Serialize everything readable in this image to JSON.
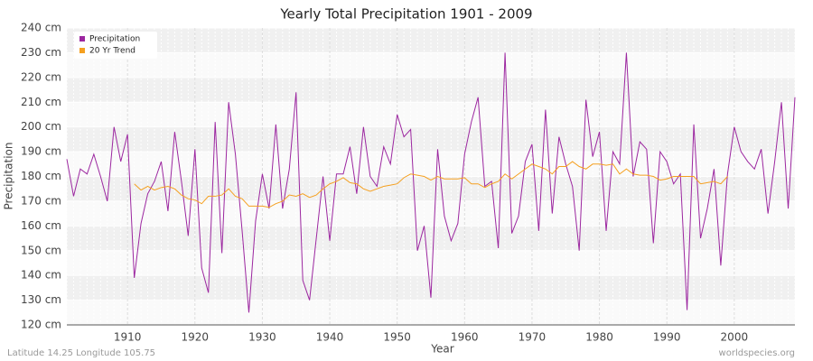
{
  "chart_data": {
    "type": "line",
    "title": "Yearly Total Precipitation 1901 - 2009",
    "x_label": "Year",
    "y_label": "Precipitation",
    "footer_left": "Latitude 14.25 Longitude 105.75",
    "footer_right": "worldspecies.org",
    "legend": "top-left",
    "grid": true,
    "x": [
      1901,
      1902,
      1903,
      1904,
      1905,
      1906,
      1907,
      1908,
      1909,
      1910,
      1911,
      1912,
      1913,
      1914,
      1915,
      1916,
      1917,
      1918,
      1919,
      1920,
      1921,
      1922,
      1923,
      1924,
      1925,
      1926,
      1927,
      1928,
      1929,
      1930,
      1931,
      1932,
      1933,
      1934,
      1935,
      1936,
      1937,
      1938,
      1939,
      1940,
      1941,
      1942,
      1943,
      1944,
      1945,
      1946,
      1947,
      1948,
      1949,
      1950,
      1951,
      1952,
      1953,
      1954,
      1955,
      1956,
      1957,
      1958,
      1959,
      1960,
      1961,
      1962,
      1963,
      1964,
      1965,
      1966,
      1967,
      1968,
      1969,
      1970,
      1971,
      1972,
      1973,
      1974,
      1975,
      1976,
      1977,
      1978,
      1979,
      1980,
      1981,
      1982,
      1983,
      1984,
      1985,
      1986,
      1987,
      1988,
      1989,
      1990,
      1991,
      1992,
      1993,
      1994,
      1995,
      1996,
      1997,
      1998,
      1999,
      2000,
      2001,
      2002,
      2003,
      2004,
      2005,
      2006,
      2007,
      2008,
      2009
    ],
    "xlim": [
      1901,
      2009
    ],
    "xticks": [
      1910,
      1920,
      1930,
      1940,
      1950,
      1960,
      1970,
      1980,
      1990,
      2000
    ],
    "ylim": [
      120,
      240
    ],
    "yticks": [
      {
        "value": 120,
        "label": "120 cm"
      },
      {
        "value": 130,
        "label": "130 cm"
      },
      {
        "value": 140,
        "label": "140 cm"
      },
      {
        "value": 150,
        "label": "150 cm"
      },
      {
        "value": 160,
        "label": "160 cm"
      },
      {
        "value": 170,
        "label": "170 cm"
      },
      {
        "value": 180,
        "label": "180 cm"
      },
      {
        "value": 190,
        "label": "190 cm"
      },
      {
        "value": 200,
        "label": "200 cm"
      },
      {
        "value": 210,
        "label": "210 cm"
      },
      {
        "value": 220,
        "label": "220 cm"
      },
      {
        "value": 230,
        "label": "230 cm"
      },
      {
        "value": 240,
        "label": "240 cm"
      }
    ],
    "series": [
      {
        "name": "Precipitation",
        "color": "#9c27a0",
        "values": [
          187,
          172,
          183,
          181,
          189,
          180,
          170,
          200,
          186,
          197,
          139,
          161,
          173,
          178,
          186,
          166,
          198,
          178,
          156,
          191,
          143,
          133,
          202,
          149,
          210,
          189,
          158,
          125,
          162,
          181,
          167,
          201,
          167,
          183,
          214,
          138,
          130,
          155,
          180,
          154,
          181,
          181,
          192,
          173,
          200,
          180,
          176,
          192,
          185,
          205,
          196,
          199,
          150,
          160,
          131,
          191,
          164,
          154,
          161,
          189,
          202,
          212,
          176,
          178,
          151,
          230,
          157,
          164,
          186,
          193,
          158,
          207,
          165,
          196,
          185,
          176,
          150,
          211,
          188,
          198,
          158,
          190,
          185,
          230,
          180,
          194,
          191,
          153,
          190,
          186,
          177,
          181,
          126,
          201,
          155,
          167,
          183,
          144,
          181,
          200,
          190,
          186,
          183,
          191,
          165,
          186,
          210,
          167,
          212
        ]
      },
      {
        "name": "20 Yr Trend",
        "color": "#f5a020",
        "values": [
          null,
          null,
          null,
          null,
          null,
          null,
          null,
          null,
          null,
          null,
          177,
          174.5,
          176,
          174.5,
          175.5,
          176,
          175,
          172.5,
          171,
          170.5,
          169,
          172,
          172,
          172.5,
          175,
          172,
          171,
          168,
          168,
          168,
          167.5,
          169,
          170,
          172.5,
          172,
          173,
          171.5,
          172.5,
          175,
          177,
          178,
          179.5,
          177.5,
          177,
          175,
          174,
          175,
          176,
          176.5,
          177,
          179.5,
          181,
          180.5,
          180,
          178.5,
          180,
          179,
          179,
          179,
          179.5,
          177,
          177,
          175.5,
          177,
          178,
          181,
          179,
          181,
          183,
          185,
          184,
          183,
          181,
          184,
          184,
          186,
          184,
          183,
          185,
          185,
          184.5,
          185,
          181,
          183,
          181,
          180.5,
          180.5,
          180,
          178.5,
          179,
          180,
          180,
          180,
          180,
          177,
          177.5,
          178,
          177,
          180,
          null,
          null,
          null,
          null,
          null,
          null,
          null,
          null,
          null,
          null
        ]
      }
    ]
  }
}
